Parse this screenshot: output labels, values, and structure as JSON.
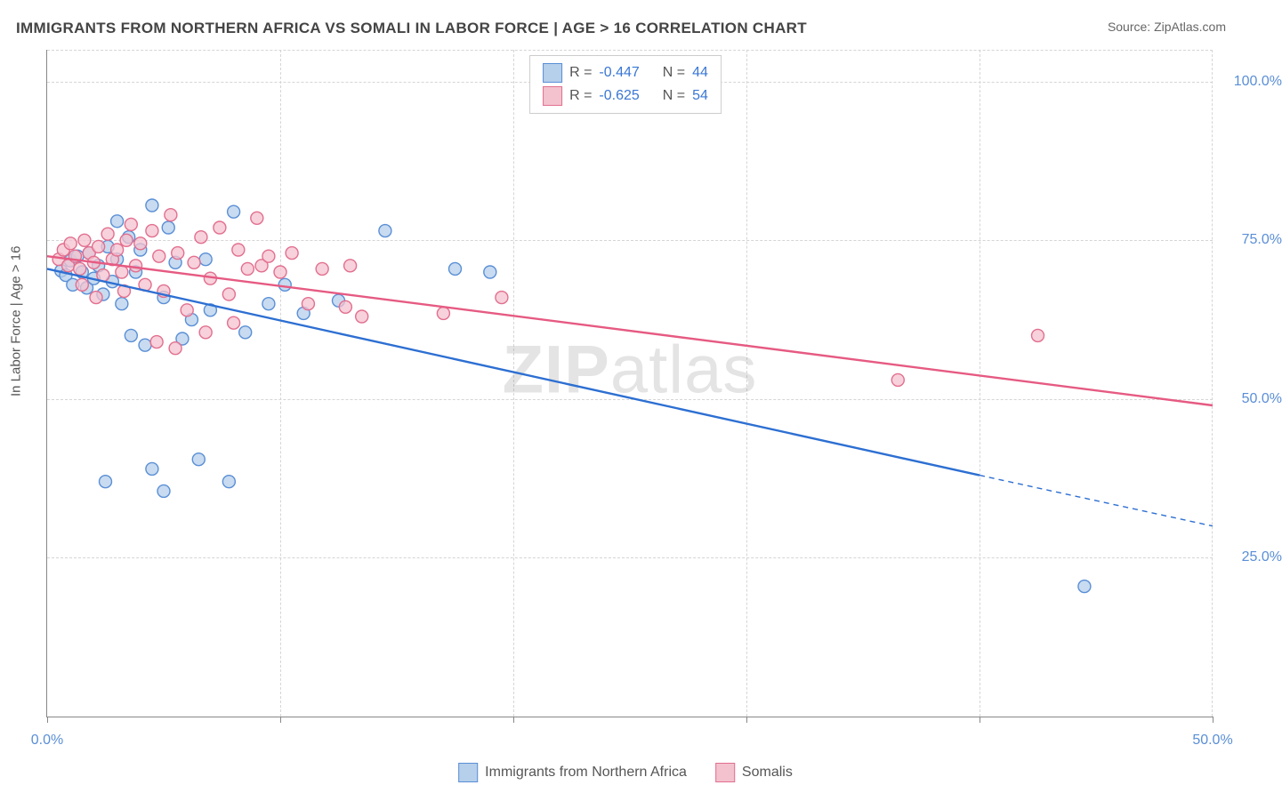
{
  "title": "IMMIGRANTS FROM NORTHERN AFRICA VS SOMALI IN LABOR FORCE | AGE > 16 CORRELATION CHART",
  "source": "Source: ZipAtlas.com",
  "ylabel": "In Labor Force | Age > 16",
  "watermark_bold": "ZIP",
  "watermark_rest": "atlas",
  "chart": {
    "type": "scatter",
    "xlim": [
      0,
      50
    ],
    "ylim": [
      0,
      105
    ],
    "xticks": [
      0,
      10,
      20,
      30,
      40,
      50
    ],
    "xtick_labels": [
      "0.0%",
      "",
      "",
      "",
      "",
      "50.0%"
    ],
    "yticks": [
      25,
      50,
      75,
      100
    ],
    "ytick_labels": [
      "25.0%",
      "50.0%",
      "75.0%",
      "100.0%"
    ],
    "grid_color": "#d5d5d5",
    "background_color": "#ffffff",
    "axis_label_color": "#5a8fd6",
    "point_radius": 7,
    "point_stroke_width": 1.4,
    "line_width": 2.4
  },
  "series": [
    {
      "name": "Immigrants from Northern Africa",
      "label": "Immigrants from Northern Africa",
      "fill": "#b6cfeb",
      "stroke": "#5a8fd6",
      "line_color": "#2d6fd2",
      "R": "-0.447",
      "N": "44",
      "regression": {
        "x1": 0,
        "y1": 70.5,
        "x2": 40,
        "y2": 38,
        "dash_x2": 50,
        "dash_y2": 30
      },
      "points": [
        [
          0.6,
          70.2
        ],
        [
          0.8,
          69.5
        ],
        [
          1.0,
          71.8
        ],
        [
          1.1,
          68.0
        ],
        [
          1.3,
          72.5
        ],
        [
          1.5,
          70.0
        ],
        [
          1.7,
          67.5
        ],
        [
          1.8,
          73.0
        ],
        [
          2.0,
          69.0
        ],
        [
          2.2,
          71.0
        ],
        [
          2.4,
          66.5
        ],
        [
          2.6,
          74.0
        ],
        [
          2.8,
          68.5
        ],
        [
          3.0,
          72.0
        ],
        [
          3.2,
          65.0
        ],
        [
          3.5,
          75.5
        ],
        [
          3.6,
          60.0
        ],
        [
          3.8,
          70.0
        ],
        [
          4.0,
          73.5
        ],
        [
          4.2,
          58.5
        ],
        [
          4.5,
          80.5
        ],
        [
          5.0,
          66.0
        ],
        [
          5.2,
          77.0
        ],
        [
          5.5,
          71.5
        ],
        [
          5.8,
          59.5
        ],
        [
          6.2,
          62.5
        ],
        [
          6.8,
          72.0
        ],
        [
          7.0,
          64.0
        ],
        [
          8.0,
          79.5
        ],
        [
          8.5,
          60.5
        ],
        [
          9.5,
          65.0
        ],
        [
          10.2,
          68.0
        ],
        [
          11.0,
          63.5
        ],
        [
          12.5,
          65.5
        ],
        [
          14.5,
          76.5
        ],
        [
          17.5,
          70.5
        ],
        [
          19.0,
          70.0
        ],
        [
          2.5,
          37.0
        ],
        [
          4.5,
          39.0
        ],
        [
          6.5,
          40.5
        ],
        [
          7.8,
          37.0
        ],
        [
          5.0,
          35.5
        ],
        [
          44.5,
          20.5
        ],
        [
          3.0,
          78.0
        ]
      ]
    },
    {
      "name": "Somalis",
      "label": "Somalis",
      "fill": "#f4c2cf",
      "stroke": "#e26f8f",
      "line_color": "#e65a82",
      "R": "-0.625",
      "N": "54",
      "regression": {
        "x1": 0,
        "y1": 72.5,
        "x2": 50,
        "y2": 49
      },
      "points": [
        [
          0.5,
          72.0
        ],
        [
          0.7,
          73.5
        ],
        [
          0.9,
          71.0
        ],
        [
          1.0,
          74.5
        ],
        [
          1.2,
          72.5
        ],
        [
          1.4,
          70.5
        ],
        [
          1.6,
          75.0
        ],
        [
          1.8,
          73.0
        ],
        [
          2.0,
          71.5
        ],
        [
          2.2,
          74.0
        ],
        [
          2.4,
          69.5
        ],
        [
          2.6,
          76.0
        ],
        [
          2.8,
          72.0
        ],
        [
          3.0,
          73.5
        ],
        [
          3.2,
          70.0
        ],
        [
          3.4,
          75.0
        ],
        [
          3.6,
          77.5
        ],
        [
          3.8,
          71.0
        ],
        [
          4.0,
          74.5
        ],
        [
          4.2,
          68.0
        ],
        [
          4.5,
          76.5
        ],
        [
          4.8,
          72.5
        ],
        [
          5.0,
          67.0
        ],
        [
          5.3,
          79.0
        ],
        [
          5.6,
          73.0
        ],
        [
          6.0,
          64.0
        ],
        [
          6.3,
          71.5
        ],
        [
          6.6,
          75.5
        ],
        [
          7.0,
          69.0
        ],
        [
          7.4,
          77.0
        ],
        [
          7.8,
          66.5
        ],
        [
          8.2,
          73.5
        ],
        [
          8.6,
          70.5
        ],
        [
          9.0,
          78.5
        ],
        [
          4.7,
          59.0
        ],
        [
          5.5,
          58.0
        ],
        [
          6.8,
          60.5
        ],
        [
          8.0,
          62.0
        ],
        [
          9.2,
          71.0
        ],
        [
          9.5,
          72.5
        ],
        [
          10.0,
          70.0
        ],
        [
          10.5,
          73.0
        ],
        [
          11.2,
          65.0
        ],
        [
          11.8,
          70.5
        ],
        [
          12.8,
          64.5
        ],
        [
          13.0,
          71.0
        ],
        [
          13.5,
          63.0
        ],
        [
          17.0,
          63.5
        ],
        [
          19.5,
          66.0
        ],
        [
          36.5,
          53.0
        ],
        [
          42.5,
          60.0
        ],
        [
          3.3,
          67.0
        ],
        [
          2.1,
          66.0
        ],
        [
          1.5,
          68.0
        ]
      ]
    }
  ],
  "legend_labels": {
    "R": "R =",
    "N": "N ="
  }
}
